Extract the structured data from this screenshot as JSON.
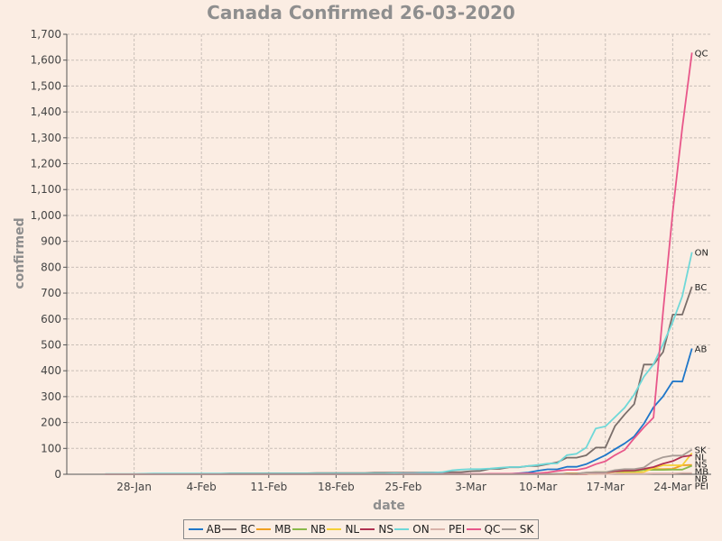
{
  "chart_data": {
    "type": "line",
    "title": "Canada Confirmed 26-03-2020",
    "xlabel": "date",
    "ylabel": "confirmed",
    "grid": true,
    "legend_position": "bottom",
    "x": [
      "2020-01-25",
      "2020-01-26",
      "2020-01-27",
      "2020-01-28",
      "2020-01-29",
      "2020-01-30",
      "2020-01-31",
      "2020-02-01",
      "2020-02-02",
      "2020-02-03",
      "2020-02-04",
      "2020-02-05",
      "2020-02-06",
      "2020-02-07",
      "2020-02-08",
      "2020-02-09",
      "2020-02-10",
      "2020-02-11",
      "2020-02-12",
      "2020-02-13",
      "2020-02-14",
      "2020-02-15",
      "2020-02-16",
      "2020-02-17",
      "2020-02-18",
      "2020-02-19",
      "2020-02-20",
      "2020-02-21",
      "2020-02-22",
      "2020-02-23",
      "2020-02-24",
      "2020-02-25",
      "2020-02-26",
      "2020-02-27",
      "2020-02-28",
      "2020-02-29",
      "2020-03-01",
      "2020-03-02",
      "2020-03-03",
      "2020-03-04",
      "2020-03-05",
      "2020-03-06",
      "2020-03-07",
      "2020-03-08",
      "2020-03-09",
      "2020-03-10",
      "2020-03-11",
      "2020-03-12",
      "2020-03-13",
      "2020-03-14",
      "2020-03-15",
      "2020-03-16",
      "2020-03-17",
      "2020-03-18",
      "2020-03-19",
      "2020-03-20",
      "2020-03-21",
      "2020-03-22",
      "2020-03-23",
      "2020-03-24",
      "2020-03-25",
      "2020-03-26"
    ],
    "x_ticks": [
      "28-Jan",
      "4-Feb",
      "11-Feb",
      "18-Feb",
      "25-Feb",
      "3-Mar",
      "10-Mar",
      "17-Mar",
      "24-Mar"
    ],
    "x_tick_dates": [
      "2020-01-28",
      "2020-02-04",
      "2020-02-11",
      "2020-02-18",
      "2020-02-25",
      "2020-03-03",
      "2020-03-10",
      "2020-03-17",
      "2020-03-24"
    ],
    "ylim": [
      0,
      1700
    ],
    "y_ticks": [
      0,
      100,
      200,
      300,
      400,
      500,
      600,
      700,
      800,
      900,
      1000,
      1100,
      1200,
      1300,
      1400,
      1500,
      1600,
      1700
    ],
    "y_tick_labels": [
      "0",
      "100",
      "200",
      "300",
      "400",
      "500",
      "600",
      "700",
      "800",
      "900",
      "1,000",
      "1,100",
      "1,200",
      "1,300",
      "1,400",
      "1,500",
      "1,600",
      "1,700"
    ],
    "series": [
      {
        "name": "AB",
        "color": "#1f77c9",
        "end_label": "AB",
        "values": [
          0,
          0,
          0,
          0,
          0,
          0,
          0,
          0,
          0,
          0,
          0,
          0,
          0,
          0,
          0,
          0,
          0,
          0,
          0,
          0,
          0,
          0,
          0,
          0,
          0,
          0,
          0,
          0,
          0,
          0,
          0,
          0,
          0,
          0,
          0,
          0,
          0,
          0,
          0,
          0,
          0,
          1,
          1,
          4,
          7,
          14,
          19,
          19,
          29,
          29,
          39,
          56,
          74,
          97,
          119,
          146,
          195,
          259,
          301,
          359,
          358,
          486
        ]
      },
      {
        "name": "BC",
        "color": "#7a6e6a",
        "end_label": "BC",
        "values": [
          0,
          0,
          0,
          0,
          1,
          1,
          1,
          1,
          1,
          1,
          2,
          2,
          2,
          4,
          4,
          4,
          4,
          4,
          4,
          4,
          4,
          4,
          5,
          5,
          5,
          5,
          5,
          5,
          6,
          6,
          6,
          6,
          6,
          7,
          7,
          7,
          8,
          8,
          12,
          13,
          21,
          21,
          27,
          27,
          32,
          32,
          39,
          46,
          64,
          64,
          73,
          103,
          103,
          186,
          231,
          271,
          424,
          424,
          472,
          617,
          617,
          725
        ]
      },
      {
        "name": "MB",
        "color": "#f0a020",
        "end_label": "MB",
        "values": [
          0,
          0,
          0,
          0,
          0,
          0,
          0,
          0,
          0,
          0,
          0,
          0,
          0,
          0,
          0,
          0,
          0,
          0,
          0,
          0,
          0,
          0,
          0,
          0,
          0,
          0,
          0,
          0,
          0,
          0,
          0,
          0,
          0,
          0,
          0,
          0,
          0,
          0,
          0,
          0,
          0,
          0,
          0,
          0,
          0,
          0,
          0,
          0,
          4,
          4,
          4,
          7,
          8,
          15,
          17,
          17,
          18,
          20,
          20,
          21,
          35,
          36
        ]
      },
      {
        "name": "NB",
        "color": "#8ab94a",
        "end_label": "NB",
        "values": [
          0,
          0,
          0,
          0,
          0,
          0,
          0,
          0,
          0,
          0,
          0,
          0,
          0,
          0,
          0,
          0,
          0,
          0,
          0,
          0,
          0,
          0,
          0,
          0,
          0,
          0,
          0,
          0,
          0,
          0,
          0,
          0,
          0,
          0,
          0,
          0,
          0,
          0,
          0,
          0,
          0,
          0,
          0,
          0,
          0,
          0,
          1,
          1,
          2,
          2,
          6,
          8,
          8,
          11,
          11,
          11,
          17,
          17,
          17,
          18,
          18,
          33
        ]
      },
      {
        "name": "NL",
        "color": "#f5d036",
        "end_label": "NL",
        "values": [
          0,
          0,
          0,
          0,
          0,
          0,
          0,
          0,
          0,
          0,
          0,
          0,
          0,
          0,
          0,
          0,
          0,
          0,
          0,
          0,
          0,
          0,
          0,
          0,
          0,
          0,
          0,
          0,
          0,
          0,
          0,
          0,
          0,
          0,
          0,
          0,
          0,
          0,
          0,
          0,
          0,
          0,
          0,
          0,
          0,
          0,
          0,
          0,
          0,
          0,
          1,
          1,
          3,
          3,
          6,
          6,
          9,
          24,
          35,
          35,
          35,
          82
        ]
      },
      {
        "name": "NS",
        "color": "#b03050",
        "end_label": "NS",
        "values": [
          0,
          0,
          0,
          0,
          0,
          0,
          0,
          0,
          0,
          0,
          0,
          0,
          0,
          0,
          0,
          0,
          0,
          0,
          0,
          0,
          0,
          0,
          0,
          0,
          0,
          0,
          0,
          0,
          0,
          0,
          0,
          0,
          0,
          0,
          0,
          0,
          0,
          0,
          0,
          0,
          0,
          0,
          0,
          0,
          0,
          0,
          0,
          0,
          0,
          0,
          0,
          5,
          7,
          12,
          14,
          15,
          21,
          28,
          41,
          51,
          68,
          73
        ]
      },
      {
        "name": "ON",
        "color": "#6fd8d8",
        "end_label": "ON",
        "values": [
          1,
          1,
          1,
          1,
          2,
          3,
          3,
          3,
          3,
          3,
          3,
          3,
          3,
          3,
          3,
          3,
          3,
          3,
          3,
          3,
          3,
          3,
          3,
          3,
          3,
          3,
          3,
          3,
          3,
          3,
          4,
          4,
          4,
          6,
          6,
          8,
          15,
          18,
          20,
          20,
          22,
          25,
          28,
          28,
          32,
          36,
          41,
          42,
          74,
          79,
          103,
          177,
          185,
          221,
          257,
          308,
          377,
          425,
          503,
          588,
          688,
          858
        ]
      },
      {
        "name": "PEI",
        "color": "#d9b2a9",
        "end_label": "PEI",
        "values": [
          0,
          0,
          0,
          0,
          0,
          0,
          0,
          0,
          0,
          0,
          0,
          0,
          0,
          0,
          0,
          0,
          0,
          0,
          0,
          0,
          0,
          0,
          0,
          0,
          0,
          0,
          0,
          0,
          0,
          0,
          0,
          0,
          0,
          0,
          0,
          0,
          0,
          0,
          0,
          0,
          0,
          0,
          0,
          0,
          0,
          0,
          0,
          0,
          0,
          1,
          1,
          1,
          1,
          2,
          2,
          2,
          2,
          3,
          3,
          3,
          5,
          5
        ]
      },
      {
        "name": "QC",
        "color": "#e8578a",
        "end_label": "QC",
        "values": [
          0,
          0,
          0,
          0,
          0,
          0,
          0,
          0,
          0,
          0,
          0,
          0,
          0,
          0,
          0,
          0,
          0,
          0,
          0,
          0,
          0,
          0,
          0,
          0,
          0,
          0,
          0,
          0,
          0,
          0,
          0,
          1,
          1,
          1,
          1,
          1,
          1,
          1,
          1,
          1,
          2,
          2,
          2,
          3,
          4,
          4,
          7,
          13,
          17,
          17,
          24,
          39,
          50,
          74,
          94,
          139,
          181,
          219,
          628,
          1013,
          1339,
          1629
        ]
      },
      {
        "name": "SK",
        "color": "#a89c96",
        "end_label": "SK",
        "values": [
          0,
          0,
          0,
          0,
          0,
          0,
          0,
          0,
          0,
          0,
          0,
          0,
          0,
          0,
          0,
          0,
          0,
          0,
          0,
          0,
          0,
          0,
          0,
          0,
          0,
          0,
          0,
          0,
          0,
          0,
          0,
          0,
          0,
          0,
          0,
          0,
          0,
          0,
          0,
          0,
          0,
          0,
          0,
          0,
          0,
          0,
          0,
          2,
          2,
          2,
          7,
          8,
          8,
          16,
          20,
          20,
          26,
          52,
          66,
          72,
          72,
          95
        ]
      }
    ]
  }
}
